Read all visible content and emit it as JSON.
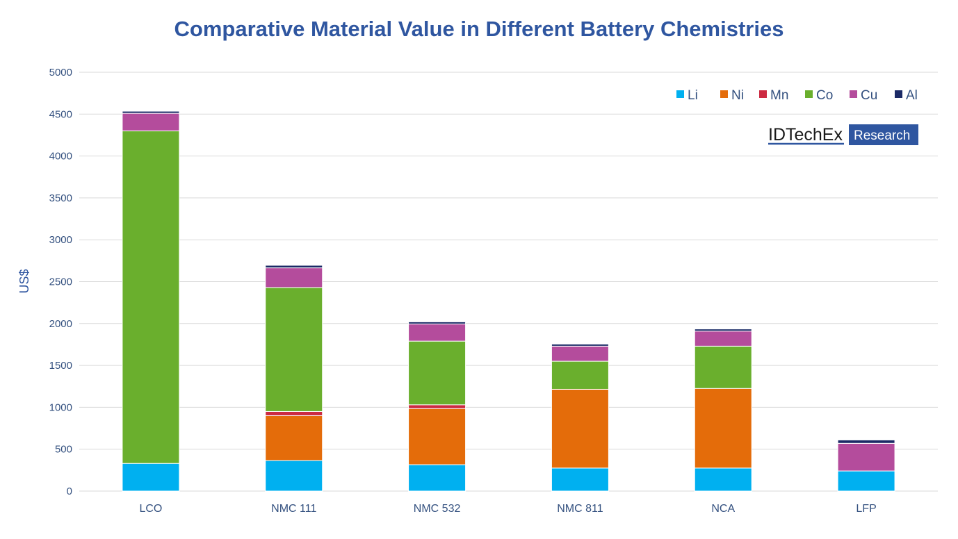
{
  "chart_data": {
    "type": "bar",
    "stacked": true,
    "title": "Comparative Material Value in Different Battery Chemistries",
    "xlabel": "",
    "ylabel": "US$",
    "ylim": [
      0,
      5000
    ],
    "yticks": [
      0,
      500,
      1000,
      1500,
      2000,
      2500,
      3000,
      3500,
      4000,
      4500,
      5000
    ],
    "grid": true,
    "legend_position": "top-right",
    "categories": [
      "LCO",
      "NMC 111",
      "NMC 532",
      "NMC 811",
      "NCA",
      "LFP"
    ],
    "series": [
      {
        "name": "Li",
        "color": "#00b0f0",
        "values": [
          330,
          365,
          315,
          275,
          275,
          240
        ]
      },
      {
        "name": "Ni",
        "color": "#e46c0a",
        "values": [
          0,
          535,
          670,
          940,
          950,
          0
        ]
      },
      {
        "name": "Mn",
        "color": "#cc2a41",
        "values": [
          0,
          50,
          45,
          0,
          0,
          0
        ]
      },
      {
        "name": "Co",
        "color": "#6aaf2d",
        "values": [
          3970,
          1480,
          760,
          335,
          505,
          0
        ]
      },
      {
        "name": "Cu",
        "color": "#b44c9c",
        "values": [
          210,
          235,
          205,
          180,
          180,
          330
        ]
      },
      {
        "name": "Al",
        "color": "#1b2a66",
        "values": [
          25,
          30,
          25,
          25,
          25,
          40
        ]
      }
    ]
  },
  "logo": {
    "left_text": "IDTechEx",
    "right_text": "Research"
  }
}
